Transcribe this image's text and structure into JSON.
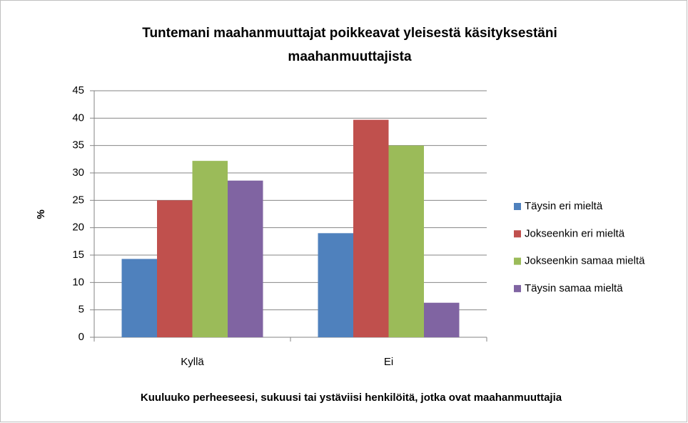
{
  "chart_data": {
    "type": "bar",
    "title": [
      "Tuntemani maahanmuuttajat poikkeavat yleisestä käsityksestäni",
      "maahanmuuttajista"
    ],
    "y_label": "%",
    "x_label": "Kuuluuko perheeseesi, sukuusi tai ystäviisi henkilöitä, jotka ovat maahanmuuttajia",
    "categories": [
      "Kyllä",
      "Ei"
    ],
    "series": [
      {
        "name": "Täysin eri mieltä",
        "color": "#4f81bd",
        "values": [
          14.3,
          19
        ]
      },
      {
        "name": "Jokseenkin eri mieltä",
        "color": "#c0504d",
        "values": [
          25,
          39.7
        ]
      },
      {
        "name": "Jokseenkin samaa mieltä",
        "color": "#9bbb59",
        "values": [
          32.2,
          35
        ]
      },
      {
        "name": "Täysin samaa mieltä",
        "color": "#8064a2",
        "values": [
          28.6,
          6.3
        ]
      }
    ],
    "ylim": [
      0,
      45
    ],
    "yticks": [
      0,
      5,
      10,
      15,
      20,
      25,
      30,
      35,
      40,
      45
    ],
    "grid": true,
    "legend": "right"
  }
}
